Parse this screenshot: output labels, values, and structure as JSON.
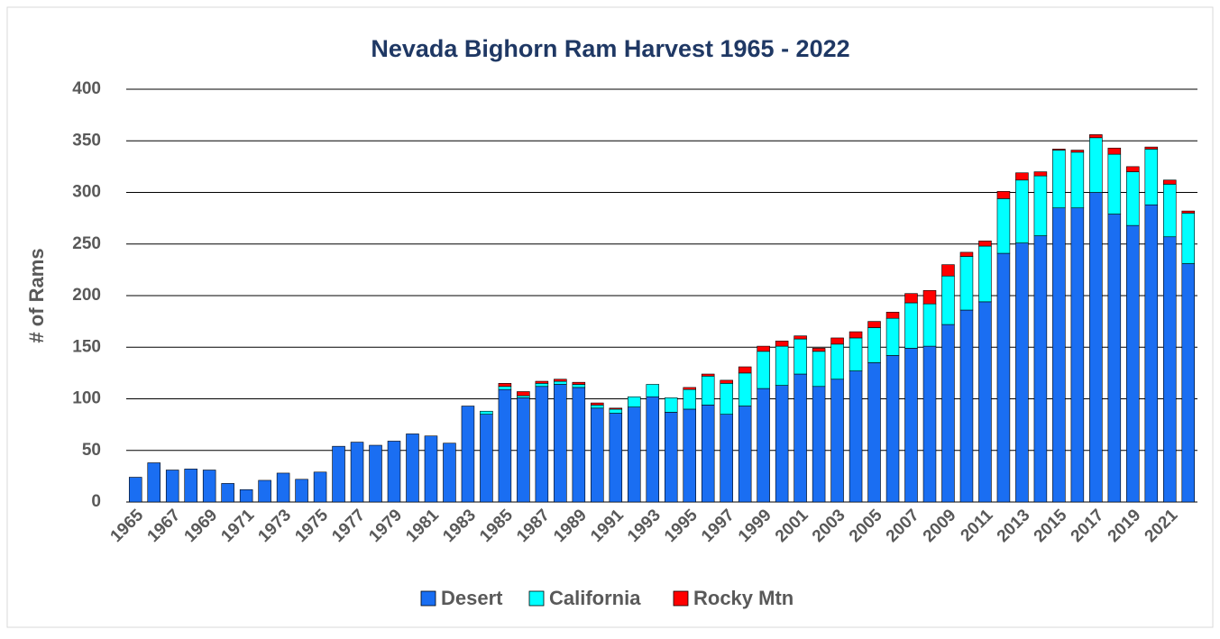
{
  "chart_data": {
    "type": "stacked_bar",
    "title": "Nevada Bighorn Ram Harvest 1965 - 2022",
    "y_label": "# of Rams",
    "categories": [
      "1965",
      null,
      "1967",
      null,
      "1969",
      null,
      "1971",
      null,
      "1973",
      null,
      "1975",
      null,
      "1977",
      null,
      "1979",
      null,
      "1981",
      null,
      "1983",
      null,
      "1985",
      null,
      "1987",
      null,
      "1989",
      null,
      "1991",
      null,
      "1993",
      null,
      "1995",
      null,
      "1997",
      null,
      "1999",
      null,
      "2001",
      null,
      "2003",
      null,
      "2005",
      null,
      "2007",
      null,
      "2009",
      null,
      "2011",
      null,
      "2013",
      null,
      "2015",
      null,
      "2017",
      null,
      "2019",
      null,
      "2021",
      null
    ],
    "series": [
      {
        "name": "Desert",
        "color": "#1a6ef2",
        "values": [
          24,
          38,
          31,
          32,
          31,
          18,
          12,
          21,
          28,
          22,
          29,
          54,
          58,
          55,
          59,
          66,
          64,
          57,
          93,
          85,
          109,
          101,
          112,
          114,
          111,
          91,
          86,
          92,
          102,
          87,
          90,
          94,
          85,
          93,
          110,
          113,
          124,
          112,
          119,
          127,
          135,
          142,
          149,
          151,
          172,
          186,
          194,
          241,
          251,
          258,
          285,
          285,
          300,
          279,
          268,
          288,
          257,
          231
        ]
      },
      {
        "name": "California",
        "color": "#00ffff",
        "values": [
          0,
          0,
          0,
          0,
          0,
          0,
          0,
          0,
          0,
          0,
          0,
          0,
          0,
          0,
          0,
          0,
          0,
          0,
          0,
          3,
          3,
          2,
          3,
          3,
          3,
          3,
          4,
          10,
          12,
          14,
          19,
          28,
          30,
          32,
          36,
          38,
          34,
          34,
          34,
          32,
          34,
          36,
          44,
          41,
          47,
          52,
          54,
          53,
          61,
          58,
          56,
          54,
          53,
          58,
          52,
          54,
          51,
          49
        ]
      },
      {
        "name": "Rocky Mtn",
        "color": "#ff0000",
        "values": [
          0,
          0,
          0,
          0,
          0,
          0,
          0,
          0,
          0,
          0,
          0,
          0,
          0,
          0,
          0,
          0,
          0,
          0,
          0,
          0,
          3,
          4,
          2,
          2,
          2,
          2,
          1,
          0,
          0,
          0,
          2,
          2,
          3,
          6,
          5,
          5,
          3,
          3,
          6,
          6,
          6,
          6,
          9,
          13,
          11,
          4,
          5,
          7,
          7,
          4,
          1,
          2,
          3,
          6,
          5,
          2,
          4,
          2
        ]
      }
    ],
    "ylim": [
      0,
      400
    ],
    "yticks": [
      0,
      50,
      100,
      150,
      200,
      250,
      300,
      350,
      400
    ],
    "grid": true
  }
}
